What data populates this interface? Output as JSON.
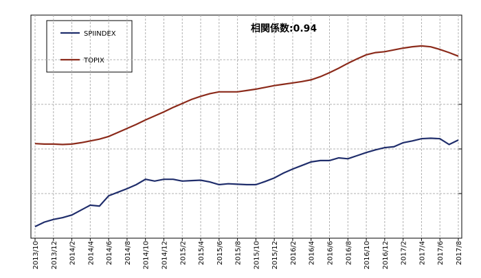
{
  "chart_data": {
    "type": "line",
    "annotation": "相関係数:0.94",
    "categories": [
      "2013/10",
      null,
      "2013/12",
      null,
      "2014/2",
      null,
      "2014/4",
      null,
      "2014/6",
      null,
      "2014/8",
      null,
      "2014/10",
      null,
      "2014/12",
      null,
      "2015/2",
      null,
      "2015/4",
      null,
      "2015/6",
      null,
      "2015/8",
      null,
      "2015/10",
      null,
      "2015/12",
      null,
      "2016/2",
      null,
      "2016/4",
      null,
      "2016/6",
      null,
      "2016/8",
      null,
      "2016/10",
      null,
      "2016/12",
      null,
      "2017/2",
      null,
      "2017/4",
      null,
      "2017/6",
      null,
      "2017/8"
    ],
    "series": [
      {
        "name": "SPIINDEX",
        "color": "#1f2d6b",
        "values": [
          0.26,
          0.36,
          0.42,
          0.46,
          0.52,
          0.63,
          0.74,
          0.72,
          0.95,
          1.03,
          1.11,
          1.2,
          1.32,
          1.28,
          1.32,
          1.32,
          1.28,
          1.29,
          1.3,
          1.26,
          1.2,
          1.22,
          1.21,
          1.2,
          1.2,
          1.27,
          1.35,
          1.46,
          1.55,
          1.63,
          1.71,
          1.74,
          1.74,
          1.8,
          1.78,
          1.85,
          1.92,
          1.98,
          2.03,
          2.05,
          2.14,
          2.18,
          2.23,
          2.24,
          2.23,
          2.1,
          2.2
        ]
      },
      {
        "name": "TOPIX",
        "color": "#8b2a1a",
        "values": [
          2.12,
          2.11,
          2.11,
          2.1,
          2.11,
          2.14,
          2.18,
          2.22,
          2.28,
          2.37,
          2.46,
          2.55,
          2.65,
          2.74,
          2.83,
          2.93,
          3.02,
          3.11,
          3.18,
          3.24,
          3.28,
          3.28,
          3.28,
          3.31,
          3.34,
          3.38,
          3.42,
          3.45,
          3.48,
          3.51,
          3.55,
          3.62,
          3.71,
          3.81,
          3.92,
          4.02,
          4.11,
          4.16,
          4.18,
          4.22,
          4.26,
          4.29,
          4.31,
          4.29,
          4.23,
          4.16,
          4.08
        ]
      }
    ],
    "ylim": [
      0,
      5
    ],
    "yticks": [
      1,
      2,
      3,
      4
    ],
    "grid": true
  }
}
